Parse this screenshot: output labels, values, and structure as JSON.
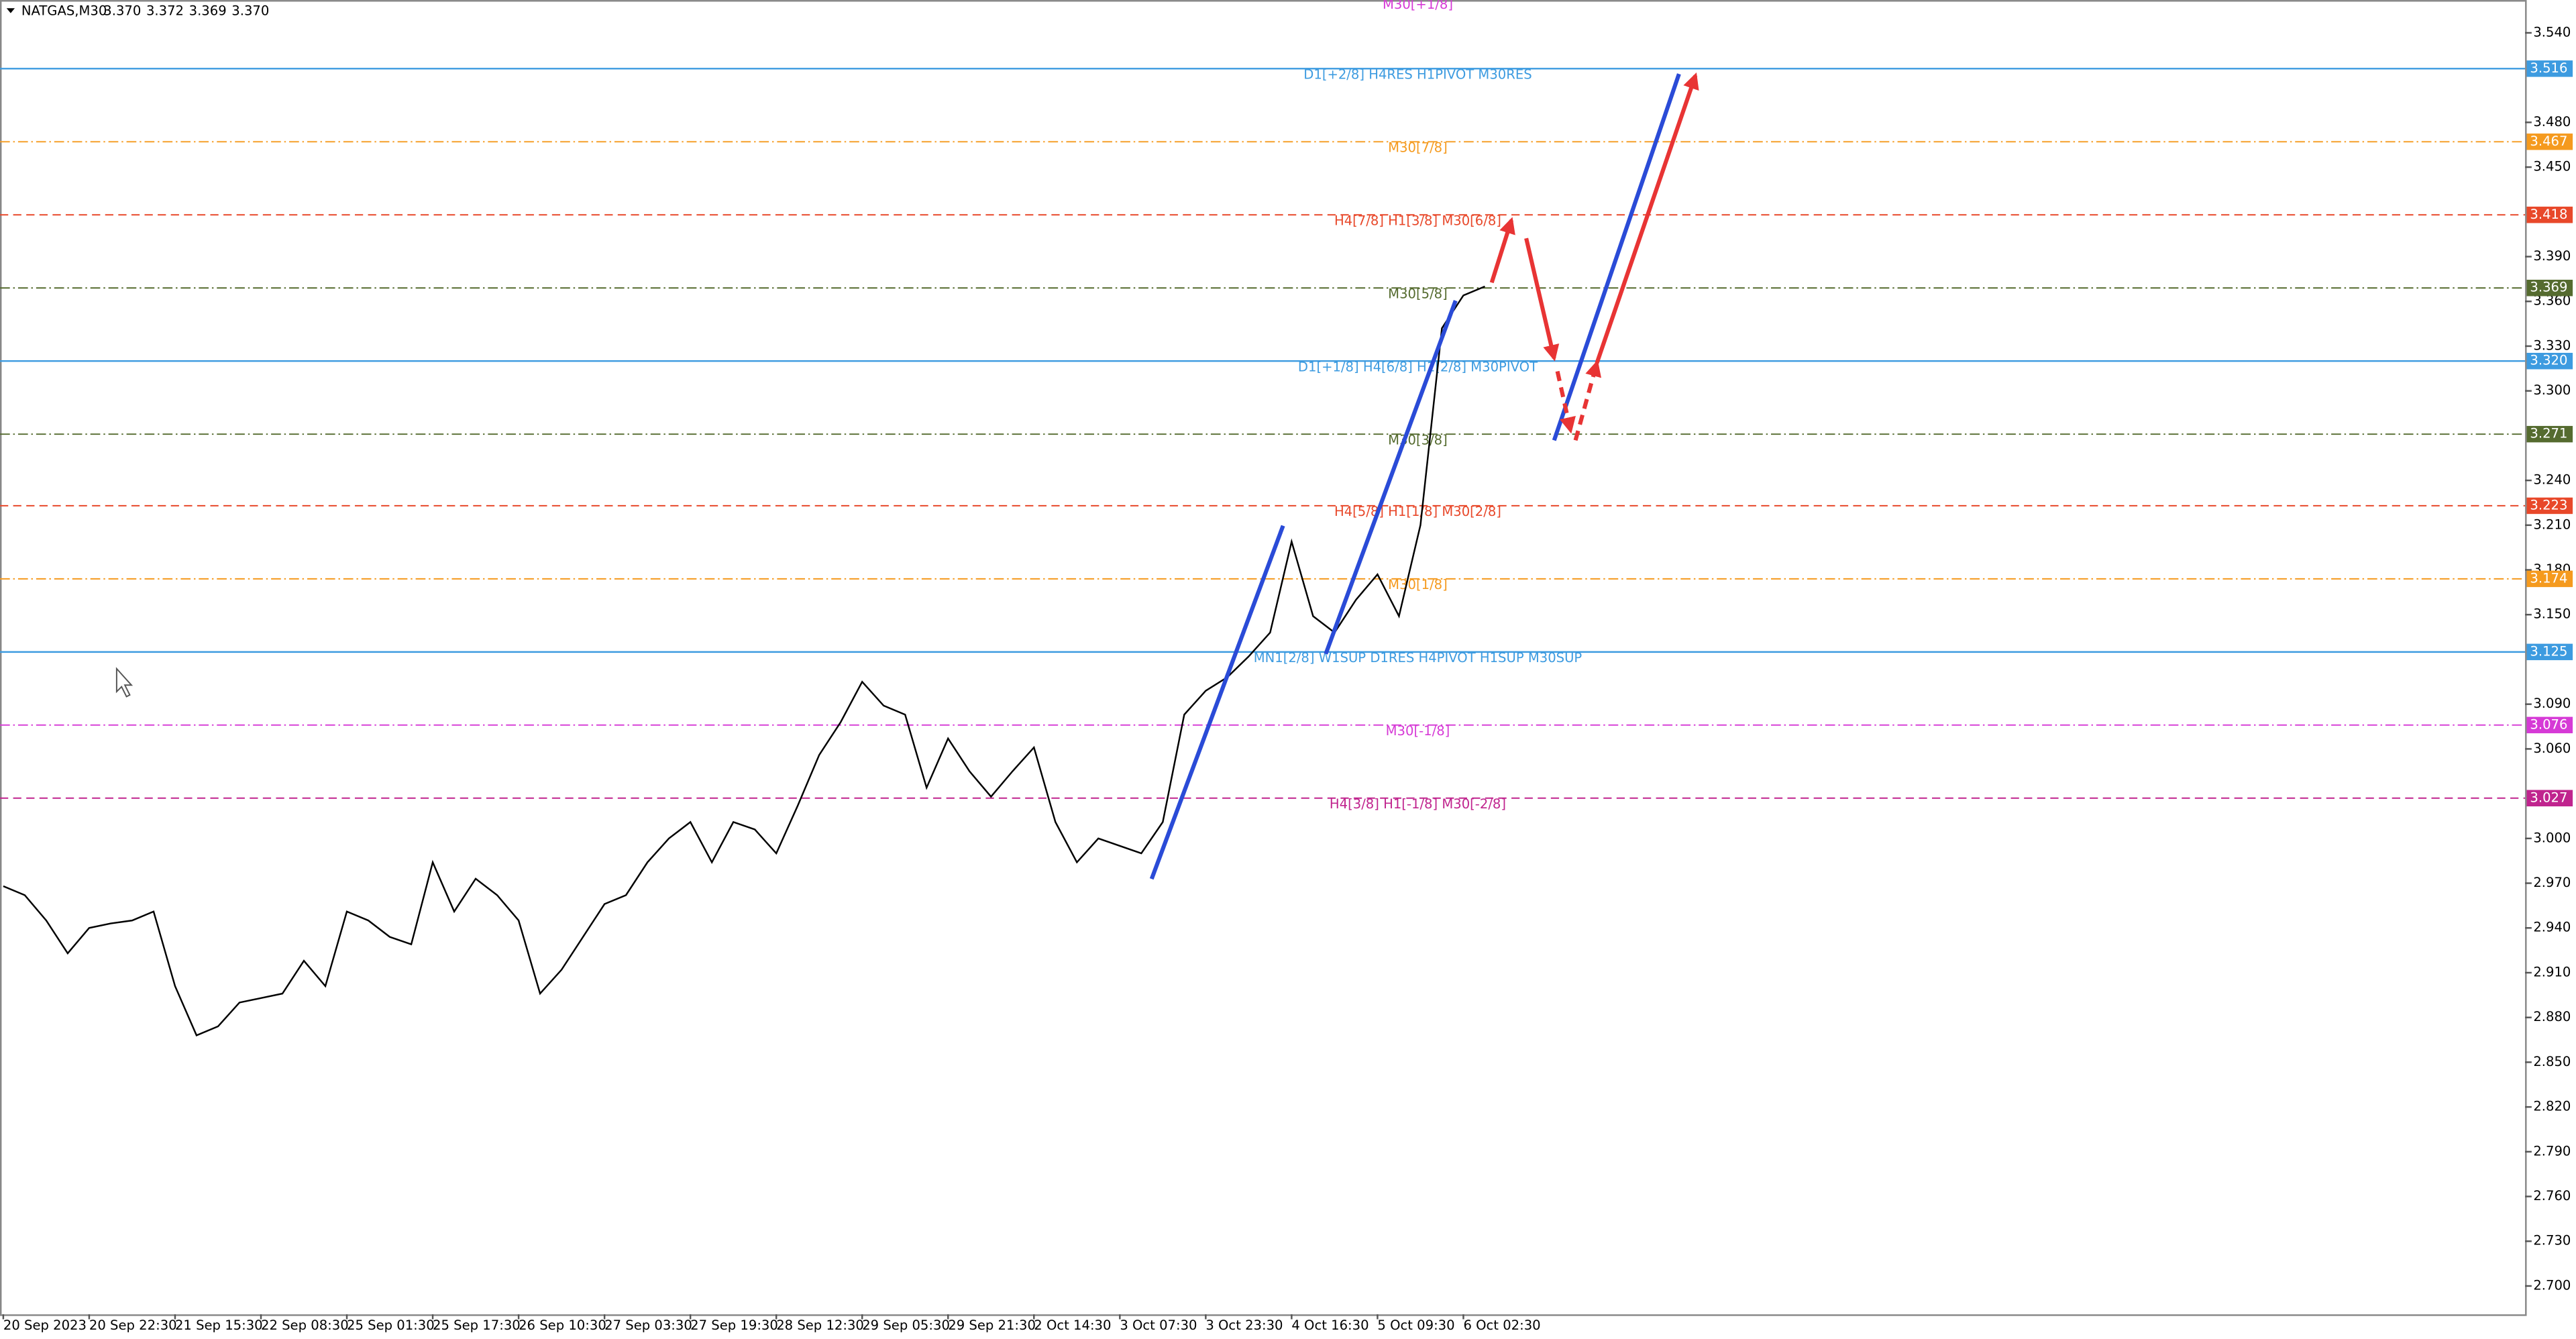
{
  "header": {
    "symbol": "NATGAS,M30",
    "quote": [
      "3.370",
      "3.372",
      "3.369",
      "3.370"
    ]
  },
  "chart_data": {
    "type": "line",
    "color": "#000000",
    "categories": [
      "20 Sep 2023",
      null,
      null,
      null,
      "20 Sep 22:30",
      null,
      null,
      null,
      "21 Sep 15:30",
      null,
      null,
      null,
      "22 Sep 08:30",
      null,
      null,
      null,
      "25 Sep 01:30",
      null,
      null,
      null,
      "25 Sep 17:30",
      null,
      null,
      null,
      "26 Sep 10:30",
      null,
      null,
      null,
      "27 Sep 03:30",
      null,
      null,
      null,
      "27 Sep 19:30",
      null,
      null,
      null,
      "28 Sep 12:30",
      null,
      null,
      null,
      "29 Sep 05:30",
      null,
      null,
      null,
      "29 Sep 21:30",
      null,
      null,
      null,
      "2 Oct 14:30",
      null,
      null,
      null,
      "3 Oct 07:30",
      null,
      null,
      null,
      "3 Oct 23:30",
      null,
      null,
      null,
      "4 Oct 16:30",
      null,
      null,
      null,
      "5 Oct 09:30",
      null,
      null,
      null,
      "6 Oct 02:30",
      null
    ],
    "values": [
      2.968,
      2.962,
      2.945,
      2.923,
      2.94,
      2.943,
      2.945,
      2.951,
      2.901,
      2.868,
      2.874,
      2.89,
      2.893,
      2.896,
      2.918,
      2.901,
      2.951,
      2.945,
      2.934,
      2.929,
      2.984,
      2.951,
      2.973,
      2.962,
      2.945,
      2.896,
      2.912,
      2.934,
      2.956,
      2.962,
      2.984,
      3.0,
      3.011,
      2.984,
      3.011,
      3.006,
      2.99,
      3.022,
      3.056,
      3.078,
      3.105,
      3.089,
      3.083,
      3.034,
      3.067,
      3.045,
      3.028,
      3.045,
      3.061,
      3.011,
      2.984,
      3.0,
      2.995,
      2.99,
      3.011,
      3.083,
      3.099,
      3.108,
      3.122,
      3.138,
      3.199,
      3.149,
      3.138,
      3.16,
      3.177,
      3.149,
      3.21,
      3.342,
      3.364,
      3.37
    ],
    "ylim": [
      2.681,
      3.562
    ],
    "yticks": [
      {
        "value": 3.54,
        "label": "3.540"
      },
      {
        "value": 3.48,
        "label": "3.480"
      },
      {
        "value": 3.45,
        "label": "3.450"
      },
      {
        "value": 3.39,
        "label": "3.390"
      },
      {
        "value": 3.36,
        "label": "3.360"
      },
      {
        "value": 3.33,
        "label": "3.330"
      },
      {
        "value": 3.3,
        "label": "3.300"
      },
      {
        "value": 3.24,
        "label": "3.240"
      },
      {
        "value": 3.21,
        "label": "3.210"
      },
      {
        "value": 3.18,
        "label": "3.180"
      },
      {
        "value": 3.15,
        "label": "3.150"
      },
      {
        "value": 3.09,
        "label": "3.090"
      },
      {
        "value": 3.06,
        "label": "3.060"
      },
      {
        "value": 3.0,
        "label": "3.000"
      },
      {
        "value": 2.97,
        "label": "2.970"
      },
      {
        "value": 2.94,
        "label": "2.940"
      },
      {
        "value": 2.91,
        "label": "2.910"
      },
      {
        "value": 2.88,
        "label": "2.880"
      },
      {
        "value": 2.85,
        "label": "2.850"
      },
      {
        "value": 2.82,
        "label": "2.820"
      },
      {
        "value": 2.79,
        "label": "2.790"
      },
      {
        "value": 2.76,
        "label": "2.760"
      },
      {
        "value": 2.73,
        "label": "2.730"
      },
      {
        "value": 2.7,
        "label": "2.700"
      }
    ],
    "offscreen_level": "M30[+1/8]",
    "levels": [
      {
        "name": "D1[+2/8] H4RES H1PIVOT M30RES",
        "value": 3.516,
        "value_label": "3.516",
        "color": "#3d9be0",
        "style": "solid"
      },
      {
        "name": "M30[7/8]",
        "value": 3.467,
        "value_label": "3.467",
        "color": "#f59a1e",
        "style": "dashdot"
      },
      {
        "name": "H4[7/8] H1[3/8] M30[6/8]",
        "value": 3.418,
        "value_label": "3.418",
        "color": "#e8482a",
        "style": "dashed"
      },
      {
        "name": "M30[5/8]",
        "value": 3.369,
        "value_label": "3.369",
        "color": "#556b2f",
        "style": "dashdot"
      },
      {
        "name": "D1[+1/8] H4[6/8] H1[2/8] M30PIVOT",
        "value": 3.32,
        "value_label": "3.320",
        "color": "#3d9be0",
        "style": "solid"
      },
      {
        "name": "M30[3/8]",
        "value": 3.271,
        "value_label": "3.271",
        "color": "#556b2f",
        "style": "dashdot"
      },
      {
        "name": "H4[5/8] H1[1/8] M30[2/8]",
        "value": 3.223,
        "value_label": "3.223",
        "color": "#e8482a",
        "style": "dashed"
      },
      {
        "name": "M30[1/8]",
        "value": 3.174,
        "value_label": "3.174",
        "color": "#f59a1e",
        "style": "dashdot"
      },
      {
        "name": "MN1[2/8] W1SUP D1RES H4PIVOT H1SUP M30SUP",
        "value": 3.125,
        "value_label": "3.125",
        "color": "#3d9be0",
        "style": "solid"
      },
      {
        "name": "M30[-1/8]",
        "value": 3.076,
        "value_label": "3.076",
        "color": "#d63ad6",
        "style": "dashdot"
      },
      {
        "name": "H4[3/8] H1[-1/8] M30[-2/8]",
        "value": 3.027,
        "value_label": "3.027",
        "color": "#c0248e",
        "style": "dashed"
      }
    ]
  }
}
